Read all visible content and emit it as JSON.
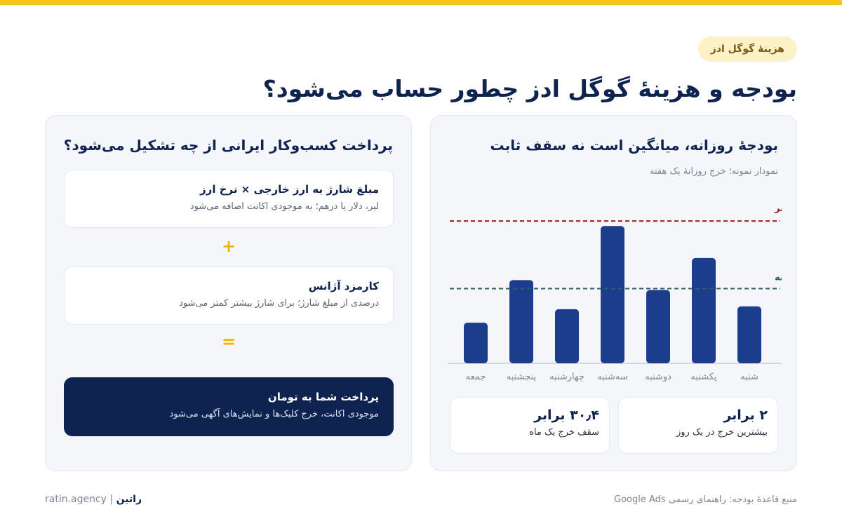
{
  "tag": "هزینهٔ گوگل ادز",
  "headline": "بودجه و هزینهٔ گوگل ادز چطور حساب می‌شود؟",
  "left": {
    "title": "پرداخت کسب‌وکار ایرانی از چه تشکیل می‌شود؟",
    "items": [
      {
        "title": "مبلغ شارژ به ارز خارجی × نرخ ارز",
        "desc": "لیر، دلار یا درهم؛ به موجودی اکانت اضافه می‌شود"
      },
      {
        "title": "کارمزد آژانس",
        "desc": "درصدی از مبلغ شارژ؛ برای شارژ بیشتر کمتر می‌شود"
      }
    ],
    "plus": "+",
    "equals": "=",
    "result": {
      "title": "پرداخت شما به تومان",
      "desc": "موجودی اکانت، خرج کلیک‌ها و نمایش‌های آگهی می‌شود"
    }
  },
  "right": {
    "title": "بودجهٔ روزانه، میانگین است نه سقف ثابت",
    "subtitle": "نمودار نمونه؛ خرج روزانهٔ یک هفته",
    "stats": [
      {
        "value": "۲ برابر",
        "label": "بیشترین خرج در یک روز"
      },
      {
        "value": "۳۰٫۴ برابر",
        "label": "سقف خرج یک ماه"
      }
    ]
  },
  "chart_data": {
    "type": "bar",
    "categories": [
      "شنبه",
      "یکشنبه",
      "دوشنبه",
      "سه‌شنبه",
      "چهارشنبه",
      "پنجشنبه",
      "جمعه"
    ],
    "values": [
      0.8,
      1.48,
      1.03,
      1.93,
      0.76,
      1.17,
      0.57
    ],
    "ylim": [
      0,
      2.1
    ],
    "reference_lines": [
      {
        "label": "سقف یک روز: ۲ برابر",
        "value": 2.0,
        "color": "#9b1c1c"
      },
      {
        "label": "بودجهٔ روزانه",
        "value": 1.05,
        "color": "#2f5f6e"
      }
    ],
    "bar_color": "#1b3d8c",
    "grid": false
  },
  "footer": {
    "brand": "راتین",
    "separator": "|",
    "domain": "ratin.agency",
    "source": "منبع قاعدهٔ بودجه: راهنمای رسمی Google Ads"
  }
}
